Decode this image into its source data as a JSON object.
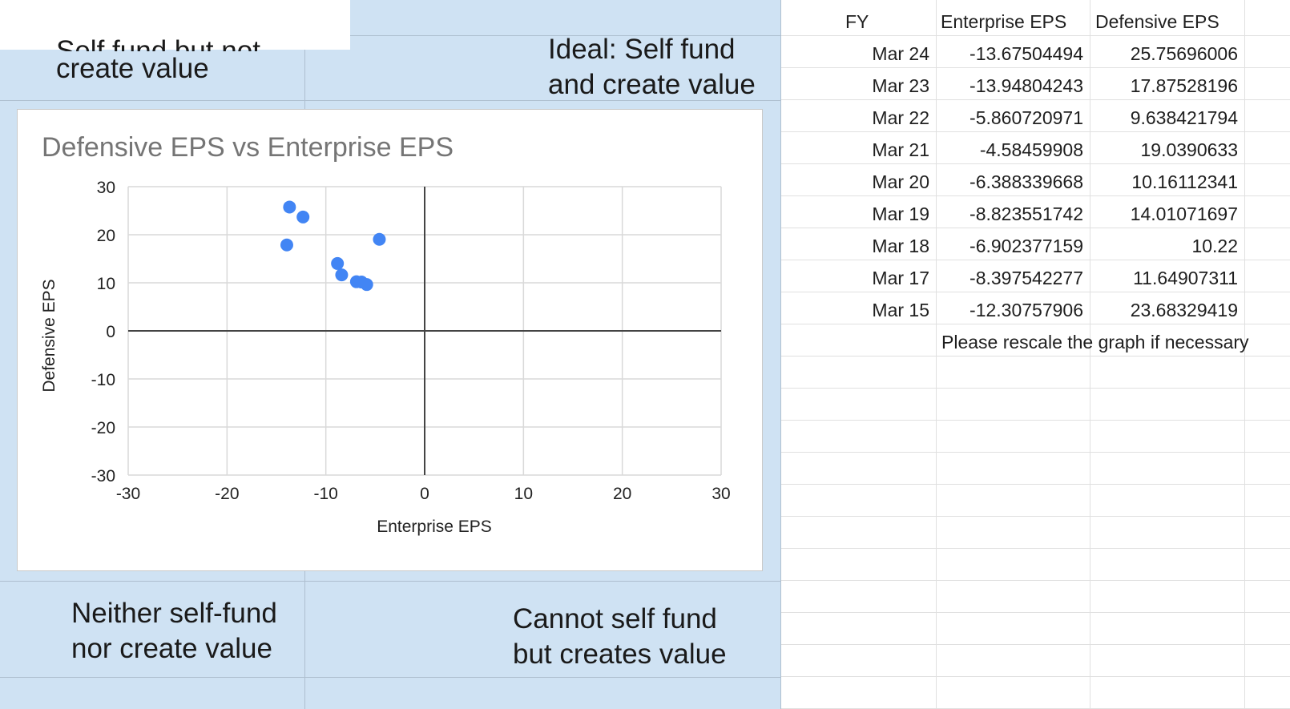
{
  "quadrants": {
    "top_left": [
      "Self fund but not",
      "create value"
    ],
    "top_right": [
      "Ideal: Self fund",
      "and create value"
    ],
    "bottom_left": [
      "Neither self-fund",
      "nor create value"
    ],
    "bottom_right": [
      "Cannot self fund",
      "but creates value"
    ]
  },
  "chart_data": {
    "type": "scatter",
    "title": "Defensive EPS vs Enterprise EPS",
    "xlabel": "Enterprise EPS",
    "ylabel": "Defensive EPS",
    "xlim": [
      -30,
      30
    ],
    "ylim": [
      -30,
      30
    ],
    "xticks": [
      -30,
      -20,
      -10,
      0,
      10,
      20,
      30
    ],
    "yticks": [
      30,
      20,
      10,
      0,
      -10,
      -20,
      -30
    ],
    "grid": true,
    "marker_color": "#4285f4",
    "x": [
      -13.67504494,
      -13.94804243,
      -5.860720971,
      -4.58459908,
      -6.388339668,
      -8.823551742,
      -6.902377159,
      -8.397542277,
      -12.30757906
    ],
    "y": [
      25.75696006,
      17.87528196,
      9.638421794,
      19.0390633,
      10.16112341,
      14.01071697,
      10.22,
      11.64907311,
      23.68329419
    ]
  },
  "sheet": {
    "headers": [
      "FY",
      "Enterprise EPS",
      "Defensive EPS"
    ],
    "rows": [
      [
        "Mar 24",
        "-13.67504494",
        "25.75696006"
      ],
      [
        "Mar 23",
        "-13.94804243",
        "17.87528196"
      ],
      [
        "Mar 22",
        "-5.860720971",
        "9.638421794"
      ],
      [
        "Mar 21",
        "-4.58459908",
        "19.0390633"
      ],
      [
        "Mar 20",
        "-6.388339668",
        "10.16112341"
      ],
      [
        "Mar 19",
        "-8.823551742",
        "14.01071697"
      ],
      [
        "Mar 18",
        "-6.902377159",
        "10.22"
      ],
      [
        "Mar 17",
        "-8.397542277",
        "11.64907311"
      ],
      [
        "Mar 15",
        "-12.30757906",
        "23.68329419"
      ]
    ],
    "note": "Please rescale the graph if necessary"
  }
}
